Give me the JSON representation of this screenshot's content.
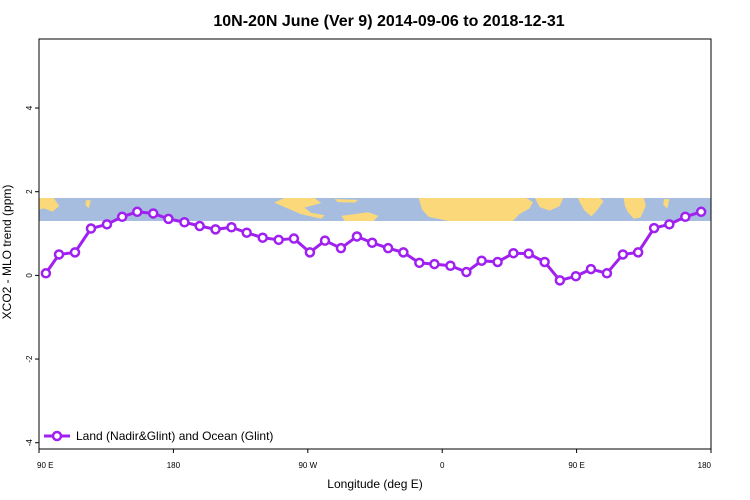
{
  "chart_data": {
    "type": "line",
    "title": "10N-20N June (Ver 9)   2014-09-06 to 2018-12-31",
    "xlabel": "Longitude (deg E)",
    "ylabel": "XCO2 - MLO trend (ppm)",
    "x_ticks": [
      {
        "value": 90,
        "label": "90 E"
      },
      {
        "value": 180,
        "label": "180"
      },
      {
        "value": 270,
        "label": "90 W"
      },
      {
        "value": 360,
        "label": "0"
      },
      {
        "value": 450,
        "label": "90 E"
      },
      {
        "value": 540,
        "label": "180"
      }
    ],
    "y_ticks": [
      -4,
      -2,
      0,
      2,
      4
    ],
    "xlim": [
      90,
      540
    ],
    "ylim": [
      -4.15,
      5.65
    ],
    "grid": false,
    "legend_position": "bottom-left",
    "map_band": {
      "y_top": 1.85,
      "y_bottom": 1.3,
      "ocean_color": "#a7bde0",
      "land_color": "#fbd97a"
    },
    "series": [
      {
        "name": "Land (Nadir&Glint) and Ocean (Glint)",
        "color": "#a020f0",
        "x": [
          94.6,
          103.4,
          114.1,
          124.8,
          135.5,
          145.7,
          155.8,
          166.5,
          176.7,
          187.4,
          197.6,
          208.2,
          218.9,
          229.1,
          239.8,
          250.5,
          260.7,
          271.4,
          281.5,
          292.2,
          302.9,
          313.1,
          323.8,
          334,
          344.7,
          354.8,
          365.5,
          376.2,
          386.4,
          397.1,
          407.7,
          417.9,
          428.6,
          438.8,
          449.5,
          459.6,
          470.3,
          481,
          491.2,
          501.9,
          512.1,
          522.8,
          533.4
        ],
        "y": [
          0.05,
          0.5,
          0.55,
          1.12,
          1.22,
          1.4,
          1.52,
          1.48,
          1.35,
          1.27,
          1.18,
          1.1,
          1.15,
          1.02,
          0.9,
          0.85,
          0.88,
          0.55,
          0.83,
          0.65,
          0.93,
          0.78,
          0.65,
          0.55,
          0.3,
          0.27,
          0.23,
          0.08,
          0.35,
          0.32,
          0.53,
          0.52,
          0.32,
          -0.12,
          -0.02,
          0.15,
          0.05,
          0.5,
          0.55,
          1.13,
          1.22,
          1.4,
          1.52
        ]
      }
    ]
  }
}
